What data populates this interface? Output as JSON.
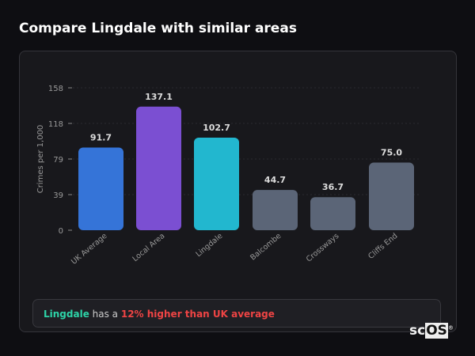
{
  "title": "Compare Lingdale with similar areas",
  "summary": {
    "area": "Lingdale",
    "middle": " has a ",
    "diff": "12% higher than UK average"
  },
  "logo": {
    "text": "scOS"
  },
  "colors": {
    "uk": "#3574d8",
    "local": "#7b4fd2",
    "lingdale": "#22b7cf",
    "other": "#5b6577",
    "highlight": "#2dd4a8",
    "negative": "#ef4444"
  },
  "chart_data": {
    "type": "bar",
    "categories": [
      "UK Average",
      "Local Area",
      "Lingdale",
      "Balcombe",
      "Crossways",
      "Cliffs End"
    ],
    "values": [
      91.7,
      137.1,
      102.7,
      44.7,
      36.7,
      75.0
    ],
    "value_labels": [
      "91.7",
      "137.1",
      "102.7",
      "44.7",
      "36.7",
      "75.0"
    ],
    "bar_colors": [
      "#3574d8",
      "#7b4fd2",
      "#22b7cf",
      "#5b6577",
      "#5b6577",
      "#5b6577"
    ],
    "ylabel": "Crimes per 1,000",
    "yticks": [
      "0",
      "39",
      "79",
      "118",
      "158"
    ],
    "ytick_values": [
      0,
      39.5,
      79,
      118.5,
      158
    ],
    "ylim": [
      0,
      158
    ],
    "grid": true
  }
}
